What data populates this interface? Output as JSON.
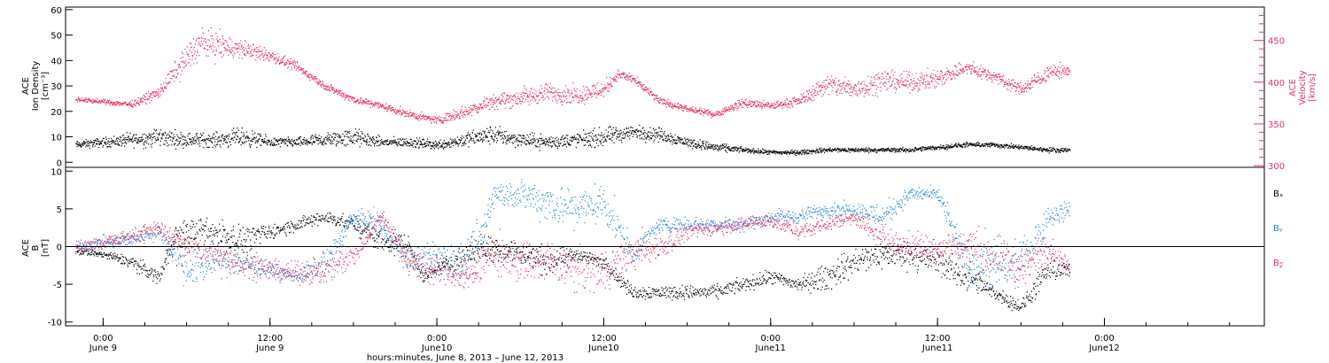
{
  "chart_data": [
    {
      "type": "scatter",
      "panel": "plasma",
      "left_axis": {
        "label_lines": [
          "ACE",
          "Ion Density",
          "[cm⁻³]"
        ],
        "ylim": [
          -2,
          61
        ],
        "ticks": [
          0,
          10,
          20,
          30,
          40,
          50,
          60
        ]
      },
      "right_axis": {
        "label_lines": [
          "ACE",
          "Velocity",
          "[km/s]"
        ],
        "color": "#e8305e",
        "ylim": [
          298,
          490
        ],
        "ticks": [
          300,
          350,
          400,
          450
        ]
      },
      "series": [
        {
          "axis": "left",
          "color": "#000000",
          "x_hours": [
            -2,
            0,
            2,
            4,
            6,
            8,
            10,
            12,
            14,
            16,
            18,
            20,
            22,
            24,
            26,
            28,
            30,
            32,
            34,
            36,
            38,
            40,
            42,
            44,
            46,
            48,
            50,
            52,
            54,
            56,
            58,
            60,
            62,
            64,
            66,
            68,
            69.5
          ],
          "values": [
            7,
            8,
            9,
            10,
            9,
            9,
            10,
            8,
            8,
            9,
            10,
            8,
            8,
            7,
            9,
            11,
            9,
            8,
            9,
            10,
            12,
            11,
            8,
            6,
            5,
            4,
            4,
            5,
            5,
            5,
            5,
            6,
            7,
            7,
            6,
            5,
            5
          ],
          "spread": [
            1.5,
            2,
            3,
            4,
            3,
            3,
            4,
            2,
            2,
            3,
            4,
            2,
            2,
            2,
            3,
            4,
            3,
            3,
            3,
            4,
            3,
            3,
            2,
            2,
            1,
            1,
            1,
            1,
            1,
            1,
            1,
            1,
            1,
            1,
            1,
            1,
            1
          ]
        },
        {
          "axis": "right",
          "color": "#e8305e",
          "x_hours": [
            -2,
            0,
            2,
            4,
            5,
            6,
            7,
            8,
            10,
            12,
            14,
            16,
            18,
            20,
            22,
            23,
            24,
            26,
            28,
            30,
            32,
            34,
            36,
            37,
            38,
            40,
            42,
            44,
            46,
            48,
            50,
            52,
            54,
            56,
            58,
            60,
            62,
            64,
            66,
            68,
            69.5
          ],
          "values": [
            380,
            377,
            374,
            388,
            410,
            430,
            448,
            445,
            440,
            432,
            418,
            395,
            380,
            372,
            362,
            358,
            355,
            365,
            378,
            382,
            388,
            385,
            392,
            410,
            405,
            378,
            368,
            362,
            376,
            372,
            378,
            398,
            392,
            403,
            400,
            405,
            418,
            408,
            392,
            412,
            415
          ],
          "spread": [
            3,
            3,
            4,
            8,
            12,
            18,
            20,
            18,
            12,
            8,
            6,
            5,
            5,
            5,
            5,
            5,
            5,
            8,
            10,
            12,
            12,
            12,
            12,
            6,
            6,
            5,
            4,
            4,
            6,
            5,
            6,
            14,
            14,
            14,
            12,
            12,
            10,
            8,
            8,
            10,
            8
          ]
        }
      ]
    },
    {
      "type": "scatter",
      "panel": "magnetic",
      "left_axis": {
        "label_lines": [
          "ACE",
          "B",
          "[nT]"
        ],
        "ylim": [
          -10.5,
          10.5
        ],
        "ticks": [
          -10,
          -5,
          0,
          5,
          10
        ]
      },
      "zero_line": true,
      "series": [
        {
          "name": "Bₓ",
          "color": "#000000",
          "x_hours": [
            -2,
            0,
            2,
            3,
            4,
            5,
            6,
            8,
            10,
            12,
            14,
            16,
            18,
            20,
            22,
            23,
            24,
            26,
            28,
            30,
            32,
            34,
            36,
            37,
            38,
            40,
            42,
            44,
            46,
            48,
            50,
            52,
            54,
            56,
            58,
            60,
            62,
            64,
            66,
            68,
            69.5
          ],
          "values": [
            -0.5,
            -1,
            -2,
            -3,
            -4,
            1,
            2,
            2,
            1,
            2,
            3,
            4,
            3,
            1,
            0,
            -4,
            -3,
            -1,
            0,
            -1,
            -2,
            -1,
            -2,
            -4,
            -6,
            -6,
            -6,
            -6,
            -5,
            -4,
            -5,
            -4,
            -2,
            -1,
            -1,
            -2,
            -4,
            -6,
            -8,
            -3,
            -3
          ],
          "spread": [
            0.5,
            0.5,
            1,
            1,
            1,
            2,
            2,
            2,
            2,
            1,
            1,
            1,
            1,
            2,
            2,
            1,
            1,
            2,
            2,
            2,
            2,
            1,
            1,
            1,
            1,
            1,
            1,
            1,
            1,
            1,
            1,
            2,
            2,
            2,
            2,
            2,
            2,
            1,
            1,
            2,
            1
          ]
        },
        {
          "name": "Bᵧ",
          "color": "#1f86e0",
          "x_hours": [
            -2,
            0,
            2,
            4,
            6,
            8,
            10,
            12,
            14,
            16,
            18,
            20,
            22,
            24,
            26,
            27,
            28,
            30,
            32,
            34,
            36,
            38,
            40,
            42,
            44,
            46,
            48,
            50,
            52,
            54,
            56,
            58,
            60,
            62,
            64,
            66,
            68,
            69.5
          ],
          "values": [
            0,
            0.5,
            1,
            2,
            -3,
            -2,
            -2,
            -3,
            -4,
            -2,
            4,
            3,
            -2,
            -1,
            -3,
            0,
            7,
            7,
            6,
            5,
            6,
            -1,
            3,
            3,
            3,
            3,
            4,
            4,
            5,
            5,
            4,
            7,
            7,
            -2,
            -3,
            -2,
            4,
            5
          ],
          "spread": [
            1,
            1,
            1,
            1,
            3,
            2,
            2,
            1,
            1,
            2,
            1,
            2,
            2,
            2,
            3,
            4,
            2,
            2,
            3,
            3,
            3,
            2,
            1,
            1,
            1,
            1,
            1,
            1,
            1,
            1,
            2,
            1,
            1,
            3,
            3,
            3,
            2,
            1
          ]
        },
        {
          "name": "B𝓏",
          "color": "#e8305e",
          "x_hours": [
            -2,
            0,
            2,
            4,
            6,
            8,
            10,
            12,
            14,
            16,
            18,
            20,
            22,
            24,
            26,
            28,
            30,
            32,
            34,
            36,
            38,
            40,
            42,
            44,
            46,
            48,
            50,
            52,
            54,
            56,
            58,
            60,
            62,
            64,
            66,
            68,
            69.5
          ],
          "values": [
            0,
            0.5,
            1.5,
            2.5,
            0,
            -1,
            -2,
            -3,
            -3.5,
            -3,
            -1,
            4,
            -2,
            -3,
            -4,
            -1,
            -2,
            -2,
            -3,
            -3,
            -1,
            0,
            2,
            2.5,
            3,
            3.5,
            2,
            3,
            4,
            1,
            0,
            0,
            0,
            -1,
            -3,
            0,
            -3
          ],
          "spread": [
            1,
            1,
            1,
            1,
            2,
            2,
            2,
            1.5,
            1.5,
            2,
            2,
            1,
            2,
            2,
            2,
            3,
            3,
            3,
            3,
            3,
            2,
            2,
            1,
            1,
            1,
            1,
            1,
            1,
            1,
            2,
            2,
            2,
            3,
            3,
            3,
            2,
            1
          ]
        }
      ]
    }
  ],
  "legend": {
    "bx": "Bₓ",
    "by": "Bᵧ",
    "bz": "B𝓏"
  },
  "x_axis": {
    "title": "hours:minutes,  June  8, 2013 – June 12, 2013",
    "xlim_hours": [
      -2.7,
      83.5
    ],
    "ticks": [
      {
        "hour": 0,
        "line1": "0:00",
        "line2": "June 9"
      },
      {
        "hour": 12,
        "line1": "12:00",
        "line2": "June 9"
      },
      {
        "hour": 24,
        "line1": "0:00",
        "line2": "June10"
      },
      {
        "hour": 36,
        "line1": "12:00",
        "line2": "June10"
      },
      {
        "hour": 48,
        "line1": "0:00",
        "line2": "June11"
      },
      {
        "hour": 60,
        "line1": "12:00",
        "line2": "June11"
      },
      {
        "hour": 72,
        "line1": "0:00",
        "line2": "June12"
      }
    ],
    "minor_step_hours": 3
  }
}
